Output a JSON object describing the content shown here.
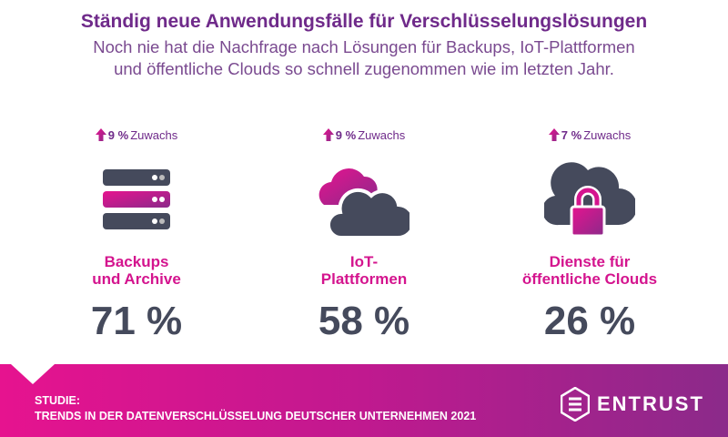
{
  "header": {
    "title": "Ständig neue Anwendungsfälle für Verschlüsselungslösungen",
    "subtitle_line1": "Noch nie hat die Nachfrage nach Lösungen für Backups, IoT-Plattformen",
    "subtitle_line2": "und öffentliche Clouds so schnell zugenommen wie im letzten Jahr."
  },
  "stats": [
    {
      "growth_value": "9 %",
      "growth_label": "Zuwachs",
      "label_line1": "Backups",
      "label_line2": "und Archive",
      "value": "71 %",
      "icon": "server-stack-icon"
    },
    {
      "growth_value": "9 %",
      "growth_label": "Zuwachs",
      "label_line1": "IoT-",
      "label_line2": "Plattformen",
      "value": "58 %",
      "icon": "clouds-icon"
    },
    {
      "growth_value": "7 %",
      "growth_label": "Zuwachs",
      "label_line1": "Dienste für",
      "label_line2": "öffentliche Clouds",
      "value": "26 %",
      "icon": "cloud-lock-icon"
    }
  ],
  "footer": {
    "study_line1": "STUDIE:",
    "study_line2": "TRENDS IN DER DATENVERSCHLÜSSELUNG DEUTSCHER UNTERNEHMEN 2021",
    "logo_text": "ENTRUST"
  },
  "colors": {
    "purple": "#6f2a8a",
    "magenta": "#d4148e",
    "dark": "#454a5c"
  }
}
